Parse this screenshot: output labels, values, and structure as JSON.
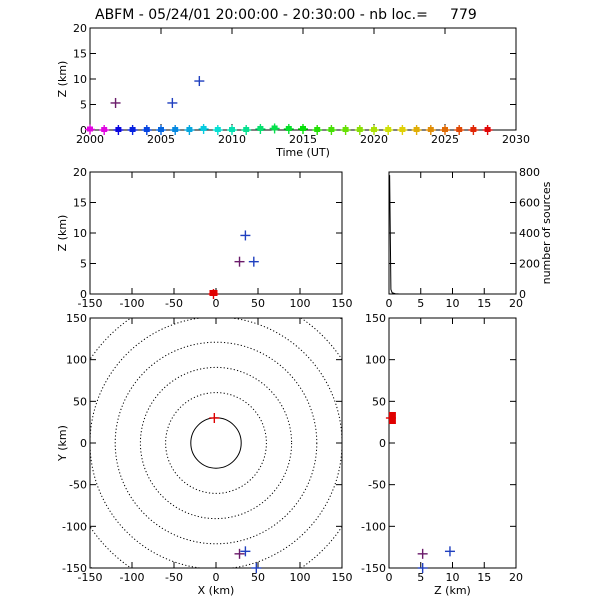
{
  "title": "ABFM - 05/24/01 20:00:00 - 20:30:00 - nb loc.=     779",
  "chart_data": [
    {
      "id": "time-height",
      "type": "scatter",
      "xlabel": "Time (UT)",
      "ylabel": "Z (km)",
      "xlim": [
        2000,
        2030
      ],
      "ylim": [
        0,
        20
      ],
      "xticks": [
        2000,
        2005,
        2010,
        2015,
        2020,
        2025,
        2030
      ],
      "yticks": [
        0,
        5,
        10,
        15,
        20
      ],
      "ground_sources": {
        "x": [
          2000.0,
          2001.0,
          2002.0,
          2003.0,
          2004.0,
          2005.0,
          2006.0,
          2007.0,
          2008.0,
          2009.0,
          2010.0,
          2011.0,
          2012.0,
          2013.0,
          2014.0,
          2015.0,
          2016.0,
          2017.0,
          2018.0,
          2019.0,
          2020.0,
          2021.0,
          2022.0,
          2023.0,
          2024.0,
          2025.0,
          2026.0,
          2027.0,
          2028.0
        ],
        "y": [
          0.1,
          0,
          0,
          0,
          0,
          0,
          0,
          0,
          0.2,
          0,
          0,
          0,
          0.2,
          0.3,
          0.2,
          0.2,
          0,
          0,
          0,
          0,
          0,
          0,
          0,
          0,
          0,
          0,
          0,
          0,
          0
        ]
      },
      "elevated_sources": {
        "x": [
          2001.8,
          2005.8,
          2007.7
        ],
        "y": [
          5.3,
          5.3,
          9.6
        ],
        "colors": [
          "#6a1b6a",
          "#1f3fbf",
          "#1f3fbf"
        ]
      }
    },
    {
      "id": "x-height",
      "type": "scatter",
      "ylabel": "Z (km)",
      "xlim": [
        -150,
        150
      ],
      "ylim": [
        0,
        20
      ],
      "xticks": [
        -150,
        -100,
        -50,
        0,
        50,
        100,
        150
      ],
      "yticks": [
        0,
        5,
        10,
        15,
        20
      ],
      "x": [
        28,
        45,
        35,
        -3
      ],
      "y": [
        5.3,
        5.3,
        9.6,
        0
      ],
      "colors": [
        "#6a1b6a",
        "#1f3fbf",
        "#1f3fbf",
        "#e00000"
      ]
    },
    {
      "id": "height-histogram",
      "type": "line",
      "ylabel": "number of sources",
      "xlim": [
        0,
        20
      ],
      "ylim": [
        0,
        800
      ],
      "xticks": [
        0,
        5,
        10,
        15,
        20
      ],
      "yticks": [
        0,
        200,
        400,
        600,
        800
      ],
      "x": [
        0,
        0.1,
        0.3,
        0.5,
        1,
        1.5,
        20
      ],
      "y": [
        776,
        776,
        30,
        8,
        2,
        1,
        0
      ]
    },
    {
      "id": "plan-view",
      "type": "scatter",
      "xlabel": "X (km)",
      "ylabel": "Y (km)",
      "xlim": [
        -150,
        150
      ],
      "ylim": [
        -150,
        150
      ],
      "xticks": [
        -150,
        -100,
        -50,
        0,
        50,
        100,
        150
      ],
      "yticks": [
        -150,
        -100,
        -50,
        0,
        50,
        100,
        150
      ],
      "range_rings_km": [
        30,
        60,
        90,
        120,
        150,
        180,
        210
      ],
      "x": [
        -2,
        28,
        35,
        48
      ],
      "y": [
        30,
        -133,
        -130,
        -150
      ],
      "colors": [
        "#e00000",
        "#6a1b6a",
        "#1f3fbf",
        "#1f3fbf"
      ]
    },
    {
      "id": "height-y",
      "type": "scatter",
      "xlabel": "Z (km)",
      "xlim": [
        0,
        20
      ],
      "ylim": [
        -150,
        150
      ],
      "xticks": [
        0,
        5,
        10,
        15,
        20
      ],
      "yticks": [
        -150,
        -100,
        -50,
        0,
        50,
        100,
        150
      ],
      "x": [
        0.3,
        5.3,
        9.6,
        5.3
      ],
      "y": [
        30,
        -133,
        -130,
        -150
      ],
      "colors": [
        "#e00000",
        "#6a1b6a",
        "#1f3fbf",
        "#1f3fbf"
      ]
    }
  ]
}
